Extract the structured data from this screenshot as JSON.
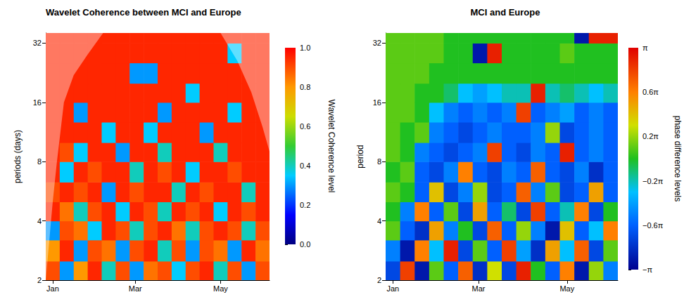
{
  "chart_data": [
    {
      "type": "heatmap",
      "title": "Wavelet Coherence between MCI and Europe",
      "ylabel": "periods (days)",
      "log": "y",
      "xlim": [
        -5,
        155
      ],
      "xticks": [
        {
          "value": 0,
          "label": "Jan"
        },
        {
          "value": 59,
          "label": "Mar"
        },
        {
          "value": 120,
          "label": "May"
        }
      ],
      "ylim": [
        2,
        36
      ],
      "yticks": [
        2,
        4,
        8,
        16,
        32
      ],
      "x_edges": [
        -5,
        5,
        15,
        25,
        35,
        45,
        55,
        65,
        75,
        85,
        95,
        105,
        115,
        125,
        135,
        145,
        155
      ],
      "y_edges": [
        2,
        2.5,
        3.2,
        4,
        5,
        6.3,
        8,
        10,
        12.7,
        16,
        20,
        25.4,
        32,
        36
      ],
      "values": [
        [
          0.9,
          0.3,
          0.8,
          0.95,
          0.4,
          0.9,
          0.3,
          0.85,
          0.9,
          0.35,
          0.9,
          0.95,
          0.4,
          0.9,
          0.3,
          0.9
        ],
        [
          0.8,
          0.95,
          0.3,
          0.9,
          0.85,
          0.3,
          0.9,
          0.95,
          0.4,
          0.9,
          0.3,
          0.9,
          0.85,
          0.3,
          0.95,
          0.85
        ],
        [
          0.3,
          0.9,
          0.85,
          0.35,
          0.95,
          0.9,
          0.4,
          0.9,
          0.95,
          0.85,
          0.4,
          0.9,
          0.95,
          0.9,
          0.4,
          0.9
        ],
        [
          0.95,
          0.85,
          0.4,
          0.9,
          0.95,
          0.35,
          0.95,
          0.9,
          0.4,
          0.95,
          0.9,
          0.95,
          0.35,
          0.95,
          0.9,
          0.95
        ],
        [
          0.9,
          0.95,
          0.9,
          0.95,
          0.3,
          0.95,
          0.9,
          0.95,
          0.95,
          0.4,
          0.95,
          0.9,
          0.95,
          0.95,
          0.4,
          0.95
        ],
        [
          0.95,
          0.35,
          0.95,
          0.9,
          0.95,
          0.95,
          0.4,
          0.95,
          0.9,
          0.95,
          0.35,
          0.95,
          0.95,
          0.9,
          0.95,
          0.95
        ],
        [
          0.95,
          0.9,
          0.35,
          0.95,
          0.95,
          0.3,
          0.95,
          0.95,
          0.4,
          0.95,
          0.95,
          0.95,
          0.4,
          0.95,
          0.95,
          0.95
        ],
        [
          0.95,
          0.95,
          0.95,
          0.95,
          0.35,
          0.95,
          0.95,
          0.35,
          0.95,
          0.95,
          0.95,
          0.3,
          0.95,
          0.95,
          0.95,
          0.95
        ],
        [
          0.95,
          0.95,
          0.3,
          0.95,
          0.95,
          0.95,
          0.95,
          0.95,
          0.3,
          0.95,
          0.95,
          0.95,
          0.95,
          0.35,
          0.95,
          0.95
        ],
        [
          0.95,
          0.95,
          0.95,
          0.95,
          0.95,
          0.95,
          0.95,
          0.95,
          0.95,
          0.95,
          0.35,
          0.95,
          0.95,
          0.95,
          0.95,
          0.95
        ],
        [
          0.95,
          0.95,
          0.95,
          0.95,
          0.95,
          0.95,
          0.3,
          0.3,
          0.95,
          0.95,
          0.95,
          0.95,
          0.95,
          0.95,
          0.95,
          0.95
        ],
        [
          0.95,
          0.95,
          0.95,
          0.95,
          0.95,
          0.95,
          0.95,
          0.95,
          0.95,
          0.95,
          0.95,
          0.95,
          0.95,
          0.35,
          0.95,
          0.95
        ],
        [
          0.95,
          0.95,
          0.95,
          0.95,
          0.95,
          0.95,
          0.95,
          0.95,
          0.95,
          0.95,
          0.95,
          0.95,
          0.95,
          0.95,
          0.95,
          0.95
        ]
      ],
      "coi": {
        "x": [
          -5,
          0,
          3,
          8,
          15,
          25,
          36,
          120,
          132,
          142,
          150,
          155
        ],
        "y": [
          2,
          5,
          8,
          16,
          22,
          28,
          36,
          36,
          26,
          18,
          12,
          9
        ]
      },
      "colorbar": {
        "label": "Wavelet Coherence level",
        "lim": [
          0,
          1
        ],
        "ticks": [
          {
            "value": 0,
            "label": "0.0"
          },
          0.2,
          0.4,
          0.6,
          0.8,
          {
            "value": 1,
            "label": "1.0"
          }
        ]
      }
    },
    {
      "type": "heatmap",
      "title": "MCI and Europe",
      "ylabel": "period",
      "log": "y",
      "xlim": [
        -5,
        155
      ],
      "xticks": [
        {
          "value": 0,
          "label": "Jan"
        },
        {
          "value": 59,
          "label": "Mar"
        },
        {
          "value": 120,
          "label": "May"
        }
      ],
      "ylim": [
        2,
        36
      ],
      "yticks": [
        2,
        4,
        8,
        16,
        32
      ],
      "x_edges": [
        -5,
        5,
        15,
        25,
        35,
        45,
        55,
        65,
        75,
        85,
        95,
        105,
        115,
        125,
        135,
        145,
        155
      ],
      "y_edges": [
        2,
        2.5,
        3.2,
        4,
        5,
        6.3,
        8,
        10,
        12.7,
        16,
        20,
        25.4,
        32,
        36
      ],
      "values": [
        [
          -0.7,
          0.8,
          -0.9,
          0.1,
          -0.6,
          0.7,
          -0.8,
          0.3,
          -0.7,
          0.9,
          0.0,
          -0.6,
          0.6,
          -0.9,
          0.2,
          -0.5
        ],
        [
          -0.5,
          -0.9,
          0.6,
          -0.3,
          0.9,
          -0.7,
          0.1,
          -0.6,
          0.8,
          -0.4,
          -0.8,
          0.5,
          -0.3,
          0.7,
          -0.7,
          0.1
        ],
        [
          0.1,
          -0.6,
          -0.8,
          0.5,
          -0.5,
          0.0,
          -0.7,
          0.7,
          -0.6,
          0.2,
          -0.5,
          -0.9,
          0.4,
          -0.6,
          -0.3,
          0.6
        ],
        [
          0.0,
          -0.5,
          0.6,
          -0.6,
          0.1,
          -0.7,
          0.5,
          -0.6,
          -0.1,
          -0.7,
          0.8,
          -0.6,
          -0.2,
          0.6,
          -0.7,
          0.0
        ],
        [
          0.1,
          0.0,
          -0.6,
          0.4,
          -0.7,
          -0.5,
          0.2,
          -0.7,
          -0.6,
          0.7,
          -0.5,
          0.1,
          -0.7,
          -0.6,
          0.5,
          -0.6
        ],
        [
          0.0,
          0.1,
          -0.6,
          -0.7,
          -0.5,
          0.6,
          -0.6,
          -0.7,
          -0.5,
          -0.6,
          0.7,
          -0.6,
          -0.7,
          -0.5,
          -0.8,
          -0.6
        ],
        [
          0.1,
          0.0,
          -0.5,
          -0.6,
          -0.7,
          -0.6,
          -0.5,
          0.8,
          -0.6,
          -0.7,
          -0.5,
          -0.6,
          0.9,
          -0.6,
          -0.5,
          -0.6
        ],
        [
          0.1,
          0.0,
          0.1,
          -0.5,
          -0.6,
          -0.7,
          -0.6,
          -0.5,
          -0.6,
          -0.6,
          -0.5,
          0.2,
          -0.7,
          -0.6,
          -0.5,
          -0.6
        ],
        [
          0.1,
          0.1,
          0.0,
          -0.3,
          -0.5,
          -0.6,
          -0.5,
          -0.6,
          -0.5,
          0.8,
          -0.6,
          -0.5,
          -0.4,
          -0.6,
          -0.5,
          -0.6
        ],
        [
          0.1,
          0.1,
          0.0,
          0.0,
          -0.1,
          -0.3,
          -0.4,
          -0.3,
          -0.2,
          -0.2,
          0.9,
          -0.2,
          -0.1,
          -0.2,
          -0.3,
          -0.2
        ],
        [
          0.1,
          0.1,
          0.1,
          0.0,
          0.0,
          0.0,
          0.0,
          0.0,
          0.0,
          0.0,
          0.0,
          0.0,
          0.0,
          0.0,
          0.0,
          0.0
        ],
        [
          0.1,
          0.1,
          0.1,
          0.1,
          0.0,
          0.0,
          -0.9,
          0.9,
          0.0,
          0.0,
          0.0,
          0.0,
          0.1,
          0.0,
          0.0,
          0.0
        ],
        [
          0.1,
          0.1,
          0.1,
          0.1,
          0.0,
          0.0,
          0.0,
          0.0,
          0.0,
          0.0,
          0.0,
          0.0,
          0.0,
          -0.9,
          0.9,
          0.9
        ]
      ],
      "colorbar": {
        "label": "phase difference levels",
        "lim": [
          -1,
          1
        ],
        "ticks": [
          {
            "value": -1,
            "label": "−π"
          },
          {
            "value": -0.6,
            "label": "−0.6π"
          },
          {
            "value": -0.2,
            "label": "−0.2π"
          },
          {
            "value": 0.2,
            "label": "0.2π"
          },
          {
            "value": 0.6,
            "label": "0.6π"
          },
          {
            "value": 1,
            "label": "π"
          }
        ]
      }
    }
  ]
}
